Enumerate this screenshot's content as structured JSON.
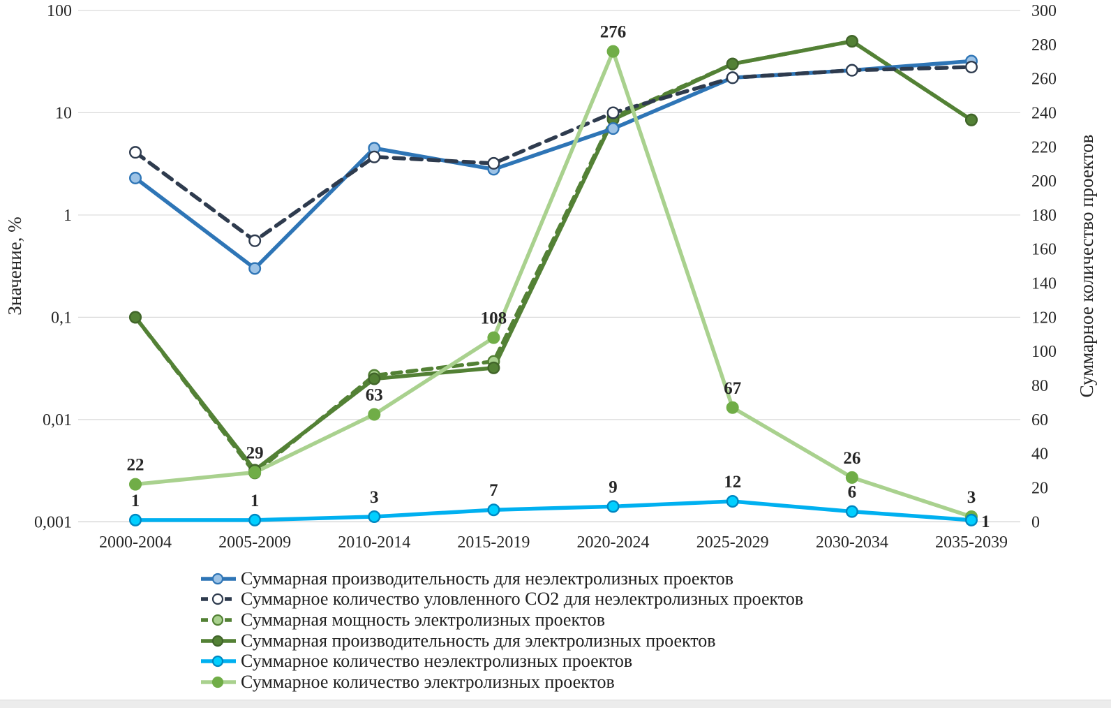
{
  "chart_data": {
    "type": "line",
    "title": "",
    "categories": [
      "2000-2004",
      "2005-2009",
      "2010-2014",
      "2015-2019",
      "2020-2024",
      "2025-2029",
      "2030-2034",
      "2035-2039"
    ],
    "axes": {
      "left": {
        "label": "Значение, %",
        "scale": "log",
        "range": [
          0.001,
          100
        ],
        "tick_labels": [
          "100",
          "10",
          "1",
          "0,1",
          "0,01",
          "0,001"
        ],
        "tick_values": [
          100,
          10,
          1,
          0.1,
          0.01,
          0.001
        ]
      },
      "right": {
        "label": "Суммарное количество проектов",
        "scale": "linear",
        "min": 0,
        "max": 300,
        "step": 20,
        "tick_labels": [
          "300",
          "280",
          "260",
          "240",
          "220",
          "200",
          "180",
          "160",
          "140",
          "120",
          "100",
          "80",
          "60",
          "40",
          "20",
          "0"
        ],
        "tick_values": [
          300,
          280,
          260,
          240,
          220,
          200,
          180,
          160,
          140,
          120,
          100,
          80,
          60,
          40,
          20,
          0
        ]
      }
    },
    "grid": "horizontal",
    "legend_position": "bottom",
    "series": [
      {
        "key": "nonelectrolysis-productivity",
        "name": "Суммарная  производительность для неэлектролизных проектов",
        "axis": "left",
        "color": "#2E75B6",
        "dash": null,
        "marker_fill": "#9DC3E6",
        "marker_stroke": "#2E75B6",
        "values": [
          2.3,
          0.3,
          4.5,
          2.8,
          7,
          22,
          26,
          32
        ]
      },
      {
        "key": "co2-captured-nonelectrolysis",
        "name": "Суммарное количество уловленного CO2 для неэлектролизных проектов",
        "axis": "left",
        "color": "#2E3B4E",
        "dash": "15 10",
        "marker_fill": "#FFFFFF",
        "marker_stroke": "#2E3B4E",
        "values": [
          4.1,
          0.56,
          3.7,
          3.2,
          10,
          22,
          26,
          28
        ]
      },
      {
        "key": "electrolysis-capacity",
        "name": "Суммарная мощность электролизных проектов",
        "axis": "left",
        "color": "#538135",
        "dash": "13 9",
        "marker_fill": "#A9D18E",
        "marker_stroke": "#538135",
        "values": [
          0.1,
          0.003,
          0.027,
          0.037,
          9,
          30,
          50,
          8.5
        ]
      },
      {
        "key": "electrolysis-productivity",
        "name": "Суммарная производительность для электролизных проектов",
        "axis": "left",
        "color": "#538135",
        "dash": null,
        "marker_fill": "#538135",
        "marker_stroke": "#41652A",
        "values": [
          0.1,
          0.0032,
          0.025,
          0.032,
          8.6,
          30,
          50,
          8.5
        ]
      },
      {
        "key": "nonelectrolysis-count",
        "name": "Суммарное количество неэлектролизных проектов",
        "axis": "right",
        "color": "#00B0F0",
        "dash": null,
        "marker_fill": "#00CFFF",
        "marker_stroke": "#0087C1",
        "values": [
          1,
          1,
          3,
          7,
          9,
          12,
          6,
          1
        ],
        "data_labels": [
          "1",
          "1",
          "3",
          "7",
          "9",
          "12",
          "6",
          "1"
        ],
        "label_color": "#2E75B6"
      },
      {
        "key": "electrolysis-count",
        "name": "Суммарное количество электролизных проектов",
        "axis": "right",
        "color": "#A9D18E",
        "dash": null,
        "marker_fill": "#70AD47",
        "marker_stroke": "#70AD47",
        "values": [
          22,
          29,
          63,
          108,
          276,
          67,
          26,
          3
        ],
        "data_labels": [
          "22",
          "29",
          "63",
          "108",
          "276",
          "67",
          "26",
          "3"
        ],
        "label_color": "#375623"
      }
    ]
  }
}
